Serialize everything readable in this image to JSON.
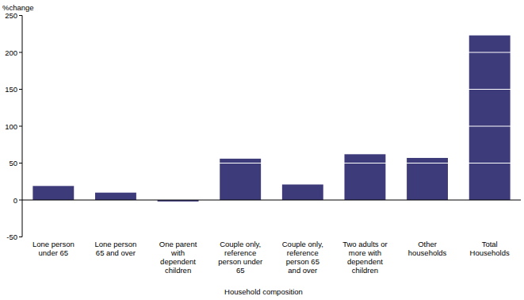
{
  "chart_data": {
    "type": "bar",
    "y_label": "%change",
    "x_label": "Household composition",
    "categories": [
      "Lone person under 65",
      "Lone person 65 and over",
      "One parent with dependent children",
      "Couple only, reference person under 65",
      "Couple only, reference person 65 and over",
      "Two adults or more with dependent children",
      "Other households",
      "Total Households"
    ],
    "values": [
      19,
      10,
      -2,
      56,
      21,
      62,
      57,
      223
    ],
    "color": "#3d3b7a",
    "ylim": [
      -50,
      250
    ],
    "yticks": [
      -50,
      0,
      50,
      100,
      150,
      200,
      250
    ],
    "grid": true
  }
}
